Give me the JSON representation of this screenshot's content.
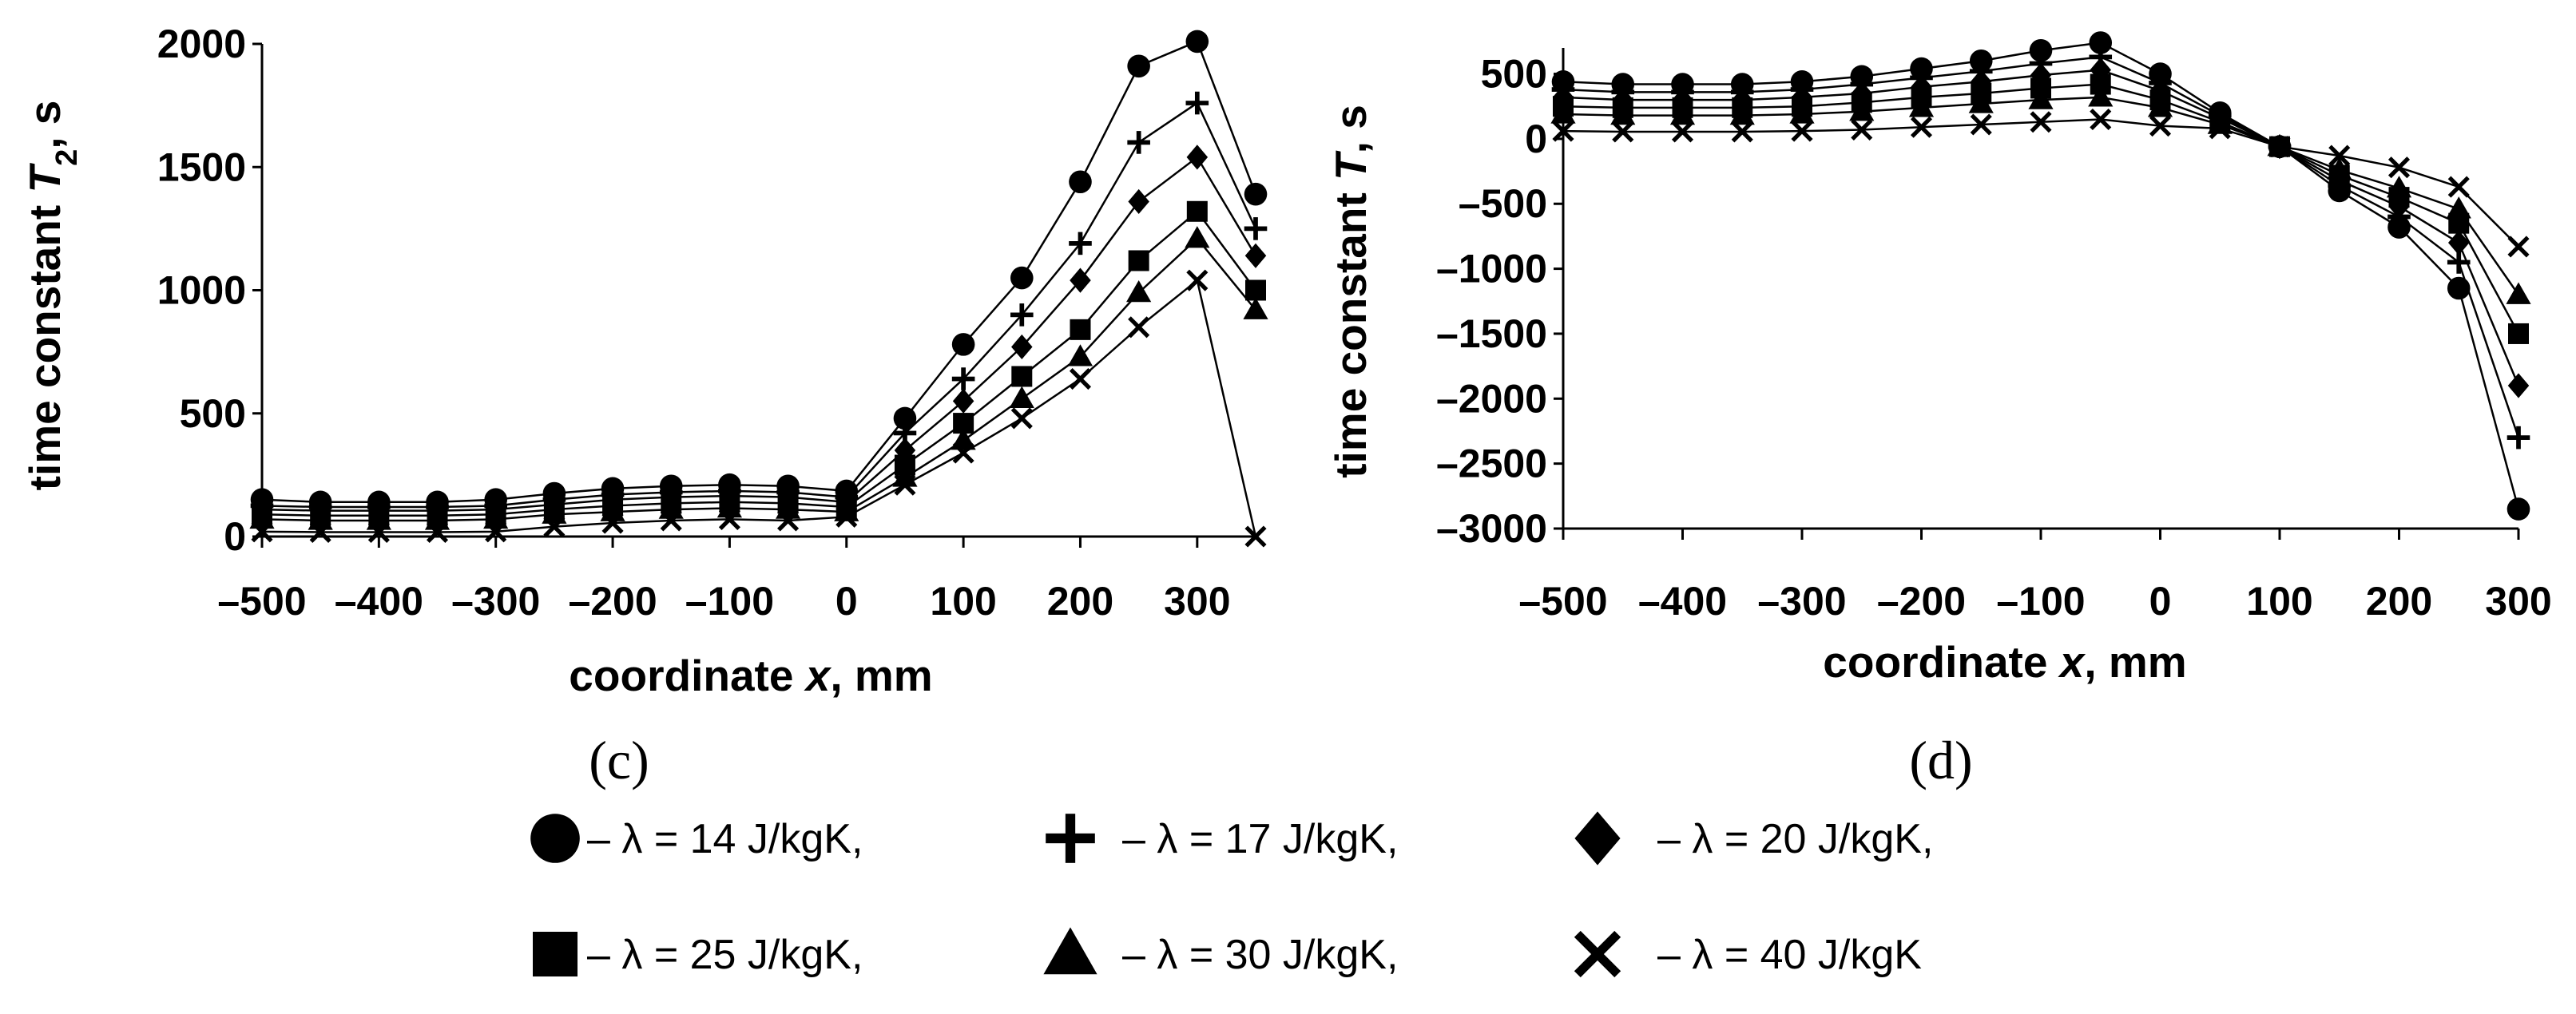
{
  "panels": {
    "c": {
      "label": "(c)"
    },
    "d": {
      "label": "(d)"
    }
  },
  "legend": {
    "items": [
      {
        "marker": "circle",
        "text": "– λ = 14 J/kgK,"
      },
      {
        "marker": "plus",
        "text": "– λ = 17 J/kgK,"
      },
      {
        "marker": "diamond",
        "text": "– λ = 20 J/kgK,"
      },
      {
        "marker": "square",
        "text": "– λ = 25 J/kgK,"
      },
      {
        "marker": "triangle",
        "text": "– λ = 30 J/kgK,"
      },
      {
        "marker": "x",
        "text": "– λ = 40 J/kgK"
      }
    ]
  },
  "chart_data": [
    {
      "id": "c",
      "type": "line",
      "title": "",
      "xlabel": {
        "prefix": "coordinate ",
        "var": "x",
        "suffix": ", mm"
      },
      "ylabel": {
        "prefix": "time constant ",
        "var": "T",
        "sub": "2",
        "suffix": ", s"
      },
      "xlim": [
        -500,
        350
      ],
      "ylim": [
        0,
        2000
      ],
      "xticks": [
        -500,
        -400,
        -300,
        -200,
        -100,
        0,
        100,
        200,
        300
      ],
      "xtick_labels": [
        "–500",
        "–400",
        "–300",
        "–200",
        "–100",
        "0",
        "100",
        "200",
        "300"
      ],
      "yticks": [
        0,
        500,
        1000,
        1500,
        2000
      ],
      "ytick_labels": [
        "0",
        "500",
        "1000",
        "1500",
        "2000"
      ],
      "x": [
        -500,
        -450,
        -400,
        -350,
        -300,
        -250,
        -200,
        -150,
        -100,
        -50,
        0,
        50,
        100,
        150,
        200,
        250,
        300,
        350
      ],
      "series": [
        {
          "name": "λ = 14 J/kgK",
          "marker": "circle",
          "values": [
            150,
            140,
            140,
            140,
            150,
            175,
            195,
            205,
            210,
            205,
            185,
            480,
            780,
            1050,
            1440,
            1910,
            2010,
            1390
          ]
        },
        {
          "name": "λ = 17 J/kgK",
          "marker": "plus",
          "values": [
            125,
            120,
            120,
            120,
            125,
            150,
            170,
            180,
            185,
            180,
            160,
            420,
            640,
            900,
            1190,
            1600,
            1760,
            1250
          ]
        },
        {
          "name": "λ = 20 J/kgK",
          "marker": "diamond",
          "values": [
            110,
            105,
            105,
            105,
            110,
            130,
            150,
            160,
            165,
            160,
            140,
            350,
            550,
            770,
            1040,
            1360,
            1540,
            1140
          ]
        },
        {
          "name": "λ = 25 J/kgK",
          "marker": "square",
          "values": [
            90,
            85,
            85,
            85,
            90,
            110,
            125,
            135,
            140,
            135,
            120,
            290,
            460,
            650,
            840,
            1120,
            1320,
            1000
          ]
        },
        {
          "name": "λ = 30 J/kgK",
          "marker": "triangle",
          "values": [
            70,
            65,
            65,
            65,
            70,
            90,
            100,
            110,
            115,
            110,
            100,
            240,
            390,
            560,
            730,
            990,
            1210,
            920
          ]
        },
        {
          "name": "λ = 40 J/kgK",
          "marker": "x",
          "values": [
            20,
            18,
            18,
            18,
            20,
            40,
            55,
            65,
            70,
            65,
            80,
            210,
            340,
            480,
            640,
            850,
            1040,
            0
          ]
        }
      ]
    },
    {
      "id": "d",
      "type": "line",
      "title": "",
      "xlabel": {
        "prefix": "coordinate ",
        "var": "x",
        "suffix": ", mm"
      },
      "ylabel": {
        "prefix": "time constant  ",
        "var": "T",
        "sub": "",
        "suffix": ", s"
      },
      "xlim": [
        -500,
        300
      ],
      "ylim": [
        -3000,
        700
      ],
      "xticks": [
        -500,
        -400,
        -300,
        -200,
        -100,
        0,
        100,
        200,
        300
      ],
      "xtick_labels": [
        "–500",
        "–400",
        "–300",
        "–200",
        "–100",
        "0",
        "100",
        "200",
        "300"
      ],
      "yticks": [
        -3000,
        -2500,
        -2000,
        -1500,
        -1000,
        -500,
        0,
        500
      ],
      "ytick_labels": [
        "–3000",
        "–2500",
        "–2000",
        "–1500",
        "–1000",
        "–500",
        "0",
        "500"
      ],
      "x": [
        -500,
        -450,
        -400,
        -350,
        -300,
        -250,
        -200,
        -150,
        -100,
        -50,
        0,
        50,
        100,
        150,
        200,
        250,
        300
      ],
      "series": [
        {
          "name": "λ = 14 J/kgK",
          "marker": "circle",
          "values": [
            440,
            420,
            420,
            420,
            440,
            480,
            540,
            600,
            680,
            740,
            500,
            200,
            -60,
            -400,
            -680,
            -1150,
            -2850
          ]
        },
        {
          "name": "λ = 17 J/kgK",
          "marker": "plus",
          "values": [
            380,
            360,
            360,
            360,
            380,
            420,
            470,
            520,
            580,
            630,
            430,
            180,
            -60,
            -360,
            -600,
            -950,
            -2300
          ]
        },
        {
          "name": "λ = 20 J/kgK",
          "marker": "diamond",
          "values": [
            320,
            300,
            300,
            300,
            320,
            350,
            400,
            440,
            490,
            530,
            370,
            160,
            -60,
            -320,
            -520,
            -800,
            -1900
          ]
        },
        {
          "name": "λ = 25 J/kgK",
          "marker": "square",
          "values": [
            250,
            240,
            240,
            240,
            250,
            280,
            320,
            350,
            390,
            420,
            300,
            130,
            -60,
            -280,
            -450,
            -650,
            -1500
          ]
        },
        {
          "name": "λ = 30 J/kgK",
          "marker": "triangle",
          "values": [
            190,
            180,
            180,
            180,
            190,
            210,
            240,
            270,
            300,
            320,
            240,
            110,
            -60,
            -240,
            -380,
            -540,
            -1200
          ]
        },
        {
          "name": "λ = 40 J/kgK",
          "marker": "x",
          "values": [
            60,
            55,
            55,
            55,
            60,
            70,
            90,
            110,
            130,
            150,
            100,
            80,
            -60,
            -130,
            -220,
            -370,
            -830
          ]
        }
      ]
    }
  ]
}
